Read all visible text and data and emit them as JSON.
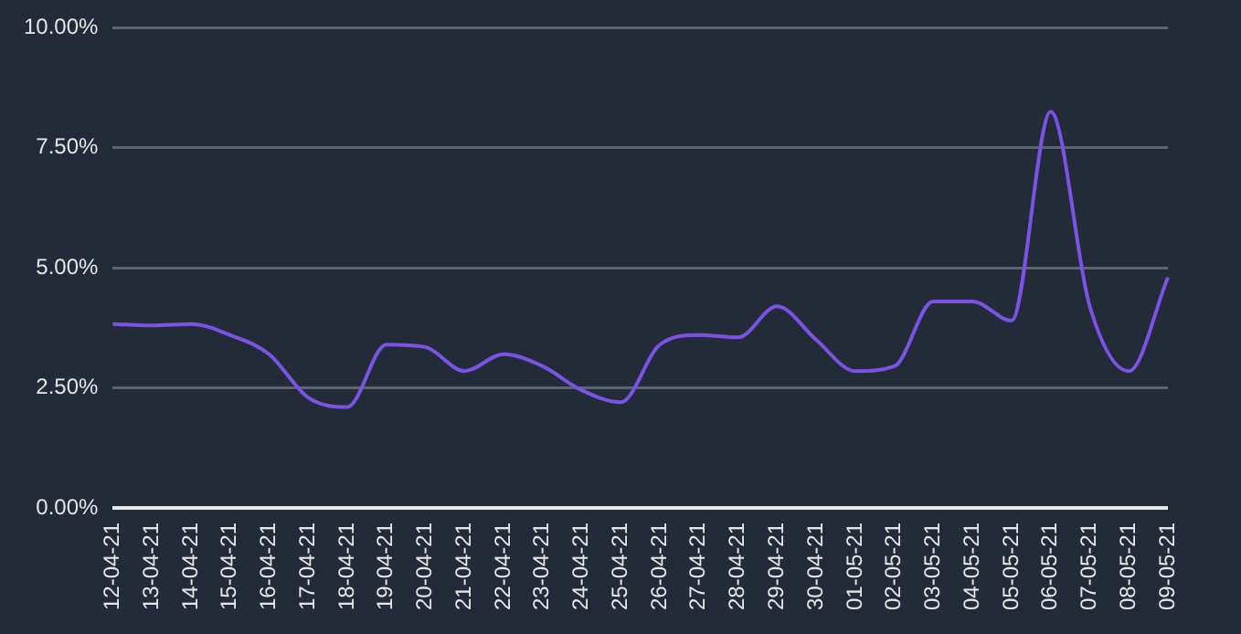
{
  "chart_data": {
    "type": "line",
    "categories": [
      "12-04-21",
      "13-04-21",
      "14-04-21",
      "15-04-21",
      "16-04-21",
      "17-04-21",
      "18-04-21",
      "19-04-21",
      "20-04-21",
      "21-04-21",
      "22-04-21",
      "23-04-21",
      "24-04-21",
      "25-04-21",
      "26-04-21",
      "27-04-21",
      "28-04-21",
      "29-04-21",
      "30-04-21",
      "01-05-21",
      "02-05-21",
      "03-05-21",
      "04-05-21",
      "05-05-21",
      "06-05-21",
      "07-05-21",
      "08-05-21",
      "09-05-21"
    ],
    "series": [
      {
        "color": "#7b52e6",
        "values": [
          3.83,
          3.8,
          3.83,
          3.6,
          3.2,
          2.3,
          2.1,
          3.4,
          3.35,
          2.85,
          3.2,
          2.95,
          2.45,
          2.2,
          3.4,
          3.6,
          3.55,
          4.2,
          3.5,
          2.85,
          2.95,
          4.3,
          4.3,
          3.9,
          8.25,
          4.2,
          2.85,
          4.8
        ]
      }
    ],
    "ylim": [
      0,
      10
    ],
    "yticks": [
      {
        "value": 0,
        "label": "0.00%"
      },
      {
        "value": 2.5,
        "label": "2.50%"
      },
      {
        "value": 5,
        "label": "5.00%"
      },
      {
        "value": 7.5,
        "label": "7.50%"
      },
      {
        "value": 10,
        "label": "10.00%"
      }
    ],
    "grid": "y",
    "legend": false,
    "marker": "none",
    "line_style": "solid"
  }
}
